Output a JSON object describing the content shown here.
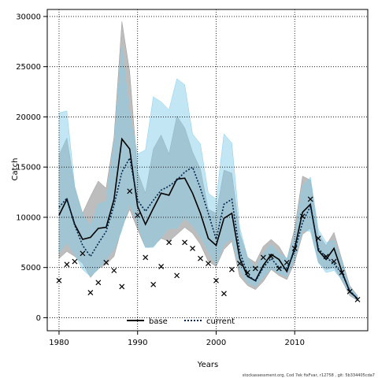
{
  "chart_data": {
    "type": "line",
    "xlabel": "Years",
    "ylabel": "Catch",
    "xlim": [
      1978.5,
      2019.3
    ],
    "ylim": [
      -1300,
      30700
    ],
    "x_ticks": [
      1980,
      1990,
      2000,
      2010
    ],
    "y_ticks": [
      0,
      5000,
      10000,
      15000,
      20000,
      25000,
      30000
    ],
    "grid": true,
    "legend_position": "bottom-center",
    "x": [
      1980,
      1981,
      1982,
      1983,
      1984,
      1985,
      1986,
      1987,
      1988,
      1989,
      1990,
      1991,
      1992,
      1993,
      1994,
      1995,
      1996,
      1997,
      1998,
      1999,
      2000,
      2001,
      2002,
      2003,
      2004,
      2005,
      2006,
      2007,
      2008,
      2009,
      2010,
      2011,
      2012,
      2013,
      2014,
      2015,
      2016,
      2017,
      2018
    ],
    "series": [
      {
        "name": "base",
        "style": "solid",
        "color": "#000000",
        "band_color": "#999999",
        "values": [
          10200,
          11800,
          9300,
          7800,
          8000,
          8900,
          9000,
          11800,
          17800,
          16800,
          11100,
          9300,
          10900,
          12400,
          12200,
          13800,
          13900,
          12400,
          10400,
          7900,
          7200,
          9900,
          10400,
          5900,
          4100,
          3700,
          5200,
          6300,
          5800,
          4600,
          6900,
          10500,
          11300,
          6700,
          5800,
          6900,
          4600,
          2600,
          1900
        ],
        "lower": [
          5900,
          6600,
          6100,
          5400,
          4000,
          4900,
          5300,
          6100,
          9000,
          10800,
          8800,
          7000,
          7100,
          7900,
          7600,
          8300,
          9000,
          8400,
          7300,
          5600,
          5100,
          6800,
          7600,
          4100,
          3200,
          2800,
          3600,
          4800,
          4200,
          3800,
          5500,
          8300,
          8900,
          5500,
          4800,
          5000,
          3700,
          2200,
          1700
        ],
        "upper": [
          16200,
          17900,
          13000,
          10400,
          12100,
          13600,
          12900,
          18000,
          29500,
          24500,
          14500,
          12400,
          16800,
          18200,
          16300,
          20100,
          18900,
          16500,
          14800,
          10800,
          10400,
          14700,
          14400,
          8400,
          6000,
          5500,
          7100,
          7800,
          7100,
          5800,
          8900,
          14100,
          13700,
          8300,
          7200,
          8500,
          5800,
          3200,
          2200
        ]
      },
      {
        "name": "current",
        "style": "dotted",
        "color": "#00264d",
        "band_color": "#87ceeb",
        "values": [
          11000,
          11900,
          9200,
          7200,
          6100,
          7400,
          8600,
          11200,
          14500,
          15900,
          11700,
          10600,
          11700,
          12700,
          13100,
          13700,
          14500,
          15000,
          12900,
          10400,
          7800,
          11300,
          11800,
          6600,
          4300,
          3600,
          5000,
          5900,
          5000,
          4900,
          6600,
          9500,
          11100,
          6900,
          6000,
          5400,
          4400,
          2700,
          1900
        ],
        "lower": [
          6400,
          7500,
          6300,
          4800,
          4100,
          4800,
          5800,
          6800,
          8700,
          11400,
          9400,
          7000,
          7000,
          8000,
          8900,
          8900,
          9900,
          9200,
          8100,
          6600,
          5300,
          7300,
          7900,
          4800,
          3500,
          3100,
          4000,
          4900,
          4400,
          4100,
          5900,
          8700,
          8600,
          5500,
          4500,
          4700,
          3800,
          2400,
          1700
        ],
        "upper": [
          20400,
          20600,
          13100,
          10300,
          9100,
          11300,
          11600,
          17300,
          27000,
          20200,
          16300,
          16700,
          22000,
          21500,
          20700,
          23800,
          23200,
          18300,
          17300,
          12400,
          11800,
          18300,
          17400,
          9000,
          6000,
          4900,
          6400,
          7300,
          6400,
          5900,
          8200,
          13100,
          14000,
          8800,
          7500,
          7700,
          5600,
          3000,
          2100
        ]
      }
    ],
    "observed": {
      "marker": "x",
      "values": [
        3700,
        5300,
        5600,
        6400,
        2500,
        3500,
        5500,
        4700,
        3100,
        12600,
        10200,
        6000,
        3300,
        5100,
        7500,
        4200,
        7500,
        6900,
        5900,
        5400,
        3700,
        2400,
        4800,
        5400,
        4500,
        4900,
        6000,
        6100,
        4900,
        5500,
        6900,
        10100,
        11800,
        7900,
        6100,
        5600,
        4500,
        2600,
        1800
      ]
    },
    "footnote": "stockassessment.org, Cod 7ek fixFvar, r12758 , git: 5b334405cda7"
  }
}
